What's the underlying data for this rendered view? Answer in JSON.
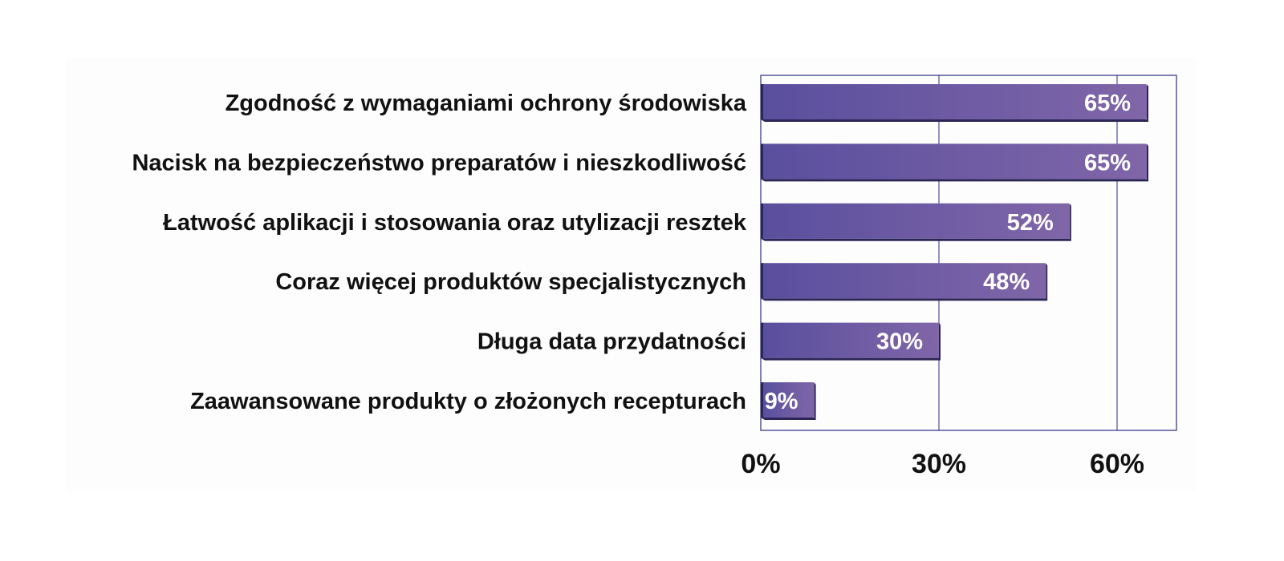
{
  "chart_data": {
    "type": "bar",
    "orientation": "horizontal",
    "categories": [
      "Zgodność z wymaganiami ochrony środowiska",
      "Nacisk na bezpieczeństwo preparatów i nieszkodliwość",
      "Łatwość aplikacji i stosowania oraz utylizacji resztek",
      "Coraz więcej produktów specjalistycznych",
      "Długa data przydatności",
      "Zaawansowane produkty o złożonych recepturach"
    ],
    "values": [
      65,
      65,
      52,
      48,
      30,
      9
    ],
    "data_labels": [
      "65%",
      "65%",
      "52%",
      "48%",
      "30%",
      "9%"
    ],
    "xlim": [
      0,
      70
    ],
    "xticks": [
      0,
      30,
      60
    ],
    "xtick_labels": [
      "0%",
      "30%",
      "60%"
    ],
    "grid": "vertical",
    "legend": "none",
    "colors": {
      "bar_fill_start": "#5a4f9e",
      "bar_fill_end": "#8066a8",
      "bar_edge": "#2c2656",
      "plot_border": "#2a2a8c",
      "gridline": "#2a2a8c",
      "label_text": "#111111",
      "value_text": "#ffffff"
    }
  }
}
